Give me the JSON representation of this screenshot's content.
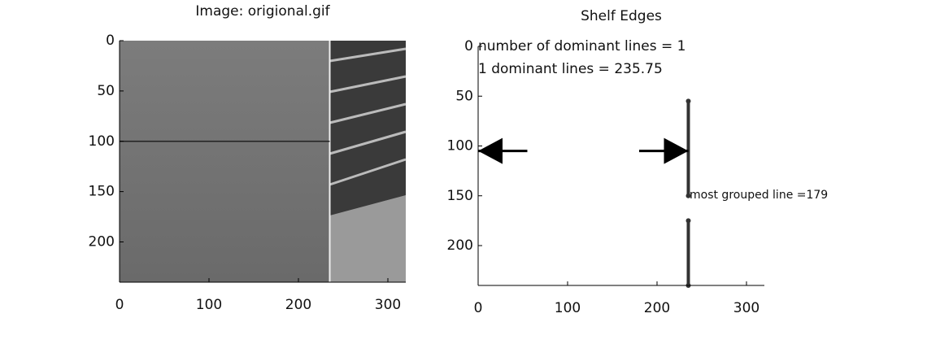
{
  "chart_data": [
    {
      "type": "image",
      "title": "Image: origional.gif",
      "xlim": [
        0,
        320
      ],
      "ylim": [
        240,
        0
      ],
      "xticks": [
        0,
        100,
        200,
        300
      ],
      "yticks": [
        0,
        50,
        100,
        150,
        200
      ],
      "hline": {
        "x": [
          0,
          235
        ],
        "y": 100
      },
      "split_x": 235
    },
    {
      "type": "line",
      "title": "Shelf Edges",
      "xlim": [
        0,
        320
      ],
      "ylim": [
        240,
        0
      ],
      "xticks": [
        0,
        100,
        200,
        300
      ],
      "yticks": [
        0,
        50,
        100,
        150,
        200
      ],
      "annotations": [
        "number of dominant lines = 1",
        "1 dominant lines = 235.75",
        "most grouped line =179"
      ],
      "series": [
        {
          "color": "#333333",
          "x": [
            235,
            235,
            235,
            235,
            235
          ],
          "values": [
            55,
            150,
            null,
            175,
            240
          ]
        }
      ],
      "arrows": [
        {
          "x": [
            55,
            0
          ],
          "y": 105
        },
        {
          "x": [
            180,
            235
          ],
          "y": 105
        }
      ]
    }
  ]
}
